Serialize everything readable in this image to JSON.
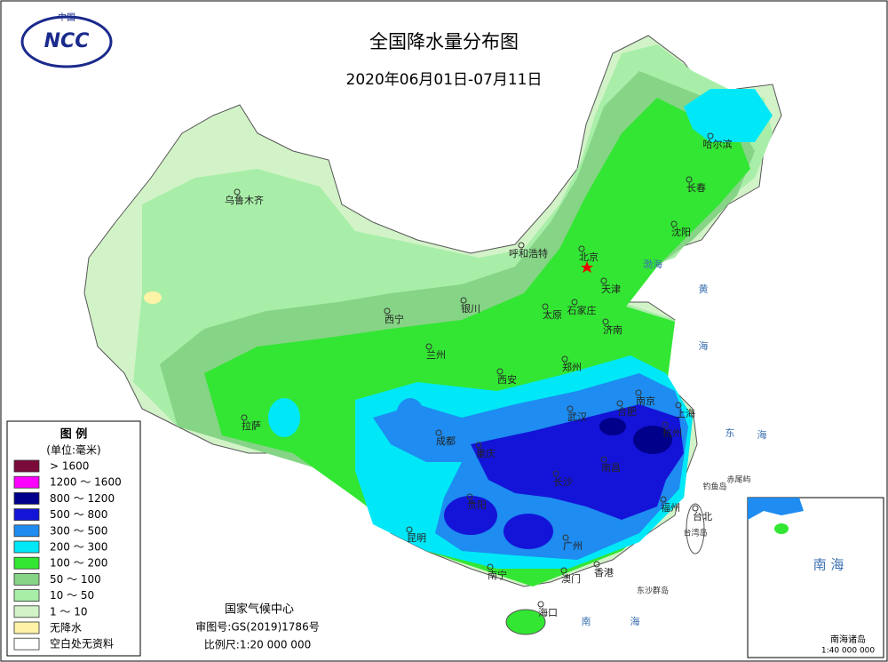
{
  "header": {
    "logo_text": "中国",
    "logo_acronym": "NCC",
    "title": "全国降水量分布图",
    "subtitle": "2020年06月01日-07月11日"
  },
  "legend": {
    "title": "图  例",
    "unit": "(单位:毫米)",
    "items": [
      {
        "label": "> 1600",
        "color": "#7a0a3a"
      },
      {
        "label": "1200 ～ 1600",
        "color": "#ff00ff"
      },
      {
        "label": "800 ～ 1200",
        "color": "#00008b"
      },
      {
        "label": "500 ～ 800",
        "color": "#1414d8"
      },
      {
        "label": "300 ～ 500",
        "color": "#1e8cf0"
      },
      {
        "label": "200 ～ 300",
        "color": "#00e8f8"
      },
      {
        "label": "100 ～ 200",
        "color": "#33e633"
      },
      {
        "label": "50 ～ 100",
        "color": "#86d486"
      },
      {
        "label": "10 ～ 50",
        "color": "#a8eea8"
      },
      {
        "label": "1 ～ 10",
        "color": "#d2f3c8"
      },
      {
        "label": "无降水",
        "color": "#fff3a8"
      },
      {
        "label": "空白处无资料",
        "color": "#ffffff"
      }
    ]
  },
  "cities": [
    {
      "label": "乌鲁木齐"
    },
    {
      "label": "呼和浩特"
    },
    {
      "label": "北京"
    },
    {
      "label": "天津"
    },
    {
      "label": "沈阳"
    },
    {
      "label": "长春"
    },
    {
      "label": "哈尔滨"
    },
    {
      "label": "西宁"
    },
    {
      "label": "兰州"
    },
    {
      "label": "银川"
    },
    {
      "label": "太原"
    },
    {
      "label": "石家庄"
    },
    {
      "label": "济南"
    },
    {
      "label": "郑州"
    },
    {
      "label": "西安"
    },
    {
      "label": "拉萨"
    },
    {
      "label": "成都"
    },
    {
      "label": "重庆"
    },
    {
      "label": "武汉"
    },
    {
      "label": "合肥"
    },
    {
      "label": "南京"
    },
    {
      "label": "上海"
    },
    {
      "label": "杭州"
    },
    {
      "label": "南昌"
    },
    {
      "label": "长沙"
    },
    {
      "label": "贵阳"
    },
    {
      "label": "昆明"
    },
    {
      "label": "福州"
    },
    {
      "label": "台北"
    },
    {
      "label": "南宁"
    },
    {
      "label": "广州"
    },
    {
      "label": "香港"
    },
    {
      "label": "澳门"
    },
    {
      "label": "海口"
    }
  ],
  "islands": [
    {
      "label": "钓鱼岛"
    },
    {
      "label": "赤尾屿"
    },
    {
      "label": "台湾岛"
    },
    {
      "label": "东沙群岛"
    }
  ],
  "seas": [
    {
      "label": "渤海"
    },
    {
      "label": "黄"
    },
    {
      "label": "海"
    },
    {
      "label": "东"
    },
    {
      "label": "海"
    },
    {
      "label": "南"
    },
    {
      "label": "海"
    }
  ],
  "footer": {
    "agency": "国家气候中心",
    "approval": "审图号:GS(2019)1786号",
    "scale": "比例尺:1:20 000 000"
  },
  "inset": {
    "title": "南 海",
    "label": "南海诸岛",
    "scale": "1:40 000 000"
  }
}
